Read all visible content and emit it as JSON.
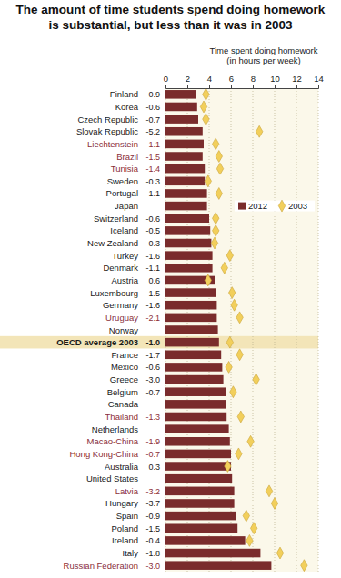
{
  "chart_data": {
    "type": "bar",
    "orientation": "horizontal",
    "title": [
      "The amount of time students spend doing homework",
      "is substantial, but less than it was in 2003"
    ],
    "xlabel": [
      "Time spent doing homework",
      "(in hours per week)"
    ],
    "categories": [
      "Finland",
      "Korea",
      "Czech Republic",
      "Slovak Republic",
      "Liechtenstein",
      "Brazil",
      "Tunisia",
      "Sweden",
      "Portugal",
      "Japan",
      "Switzerland",
      "Iceland",
      "New Zealand",
      "Turkey",
      "Denmark",
      "Austria",
      "Luxembourg",
      "Germany",
      "Uruguay",
      "Norway",
      "OECD average 2003",
      "France",
      "Mexico",
      "Greece",
      "Belgium",
      "Canada",
      "Thailand",
      "Netherlands",
      "Macao-China",
      "Hong Kong-China",
      "Australia",
      "United States",
      "Latvia",
      "Hungary",
      "Spain",
      "Poland",
      "Ireland",
      "Italy",
      "Russian Federation"
    ],
    "label_colors": [
      "#1a1a1a",
      "#1a1a1a",
      "#1a1a1a",
      "#1a1a1a",
      "#8b2f3a",
      "#8b2f3a",
      "#8b2f3a",
      "#1a1a1a",
      "#1a1a1a",
      "#1a1a1a",
      "#1a1a1a",
      "#1a1a1a",
      "#1a1a1a",
      "#1a1a1a",
      "#1a1a1a",
      "#1a1a1a",
      "#1a1a1a",
      "#1a1a1a",
      "#8b2f3a",
      "#1a1a1a",
      "#1a1a1a",
      "#1a1a1a",
      "#1a1a1a",
      "#1a1a1a",
      "#1a1a1a",
      "#1a1a1a",
      "#8b2f3a",
      "#1a1a1a",
      "#8b2f3a",
      "#8b2f3a",
      "#1a1a1a",
      "#1a1a1a",
      "#8b2f3a",
      "#1a1a1a",
      "#1a1a1a",
      "#1a1a1a",
      "#1a1a1a",
      "#1a1a1a",
      "#8b2f3a"
    ],
    "highlight": [
      20
    ],
    "changes": [
      -0.9,
      -0.6,
      -0.7,
      -5.2,
      -1.1,
      -1.5,
      -1.4,
      -0.3,
      -1.1,
      null,
      -0.6,
      -0.5,
      -0.3,
      -1.6,
      -1.1,
      0.6,
      -1.5,
      -1.6,
      -2.1,
      null,
      -1.0,
      -1.7,
      -0.6,
      -3.0,
      -0.7,
      null,
      -1.3,
      null,
      -1.9,
      -0.7,
      0.3,
      null,
      -3.2,
      -3.7,
      -0.9,
      -1.5,
      -0.4,
      -1.8,
      -3.0
    ],
    "change_labels": [
      "-0.9",
      "-0.6",
      "-0.7",
      "-5.2",
      "-1.1",
      "-1.5",
      "-1.4",
      "-0.3",
      "-1.1",
      null,
      "-0.6",
      "-0.5",
      "-0.3",
      "-1.6",
      "-1.1",
      "0.6",
      "-1.5",
      "-1.6",
      "-2.1",
      null,
      "-1.0",
      "-1.7",
      "-0.6",
      "-3.0",
      "-0.7",
      null,
      "-1.3",
      null,
      "-1.9",
      "-0.7",
      "0.3",
      null,
      "-3.2",
      "-3.7",
      "-0.9",
      "-1.5",
      "-0.4",
      "-1.8",
      "-3.0"
    ],
    "series": [
      {
        "name": "2012",
        "type": "bar",
        "color": "#7a2c2c",
        "values": [
          2.8,
          2.9,
          3.0,
          3.4,
          3.5,
          3.4,
          3.6,
          3.6,
          3.8,
          3.8,
          4.0,
          4.1,
          4.2,
          4.3,
          4.3,
          4.5,
          4.6,
          4.7,
          4.7,
          4.8,
          4.9,
          5.1,
          5.2,
          5.3,
          5.5,
          5.5,
          5.6,
          5.8,
          5.9,
          6.0,
          6.0,
          6.1,
          6.3,
          6.3,
          6.5,
          6.6,
          7.3,
          8.7,
          9.7
        ]
      },
      {
        "name": "2003",
        "type": "scatter",
        "marker": "diamond",
        "color": "#f2cf5b",
        "values": [
          3.7,
          3.5,
          3.7,
          8.6,
          4.6,
          4.9,
          5.0,
          3.9,
          4.9,
          null,
          4.6,
          4.6,
          4.5,
          5.9,
          5.4,
          3.9,
          6.1,
          6.3,
          6.8,
          null,
          5.9,
          6.8,
          5.8,
          8.3,
          6.2,
          null,
          6.9,
          null,
          7.8,
          6.7,
          5.7,
          null,
          9.5,
          10.0,
          7.4,
          8.1,
          7.7,
          10.5,
          12.7
        ]
      }
    ],
    "xlim": [
      0,
      14
    ],
    "xticks": [
      0,
      2,
      4,
      6,
      8,
      10,
      12,
      14
    ],
    "grid": true,
    "legend": "top-right"
  }
}
